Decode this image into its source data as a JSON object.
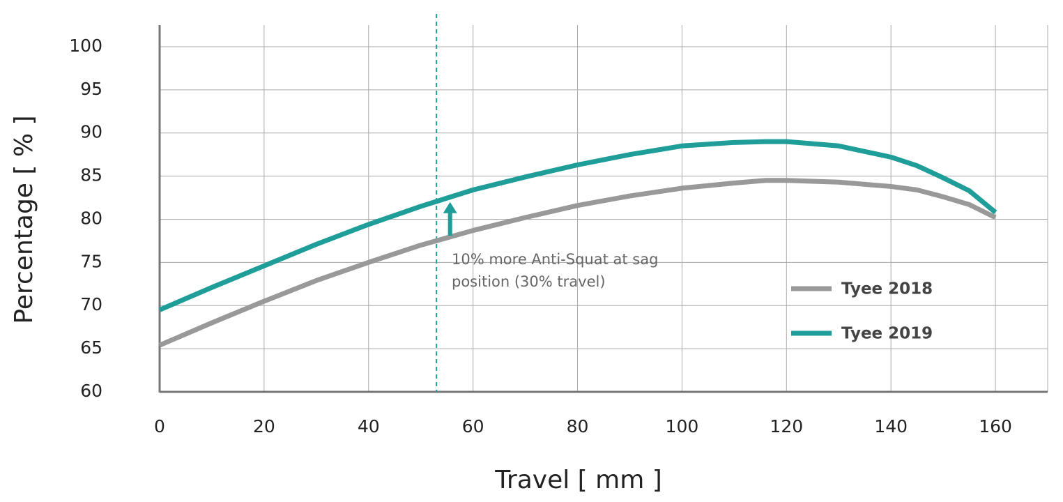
{
  "chart_data": {
    "type": "line",
    "x_label": "Travel [ mm ]",
    "y_label": "Percentage [ % ]",
    "x": [
      0,
      10,
      20,
      30,
      40,
      50,
      60,
      70,
      80,
      90,
      100,
      110,
      116,
      120,
      130,
      140,
      145,
      150,
      155,
      160
    ],
    "series": [
      {
        "name": "Tyee 2018",
        "color": "#999999",
        "values": [
          65.4,
          68.0,
          70.5,
          72.9,
          75.0,
          77.0,
          78.7,
          80.2,
          81.6,
          82.7,
          83.6,
          84.2,
          84.5,
          84.5,
          84.3,
          83.8,
          83.4,
          82.6,
          81.7,
          80.2
        ]
      },
      {
        "name": "Tyee 2019",
        "color": "#1f9e99",
        "values": [
          69.5,
          72.1,
          74.6,
          77.1,
          79.4,
          81.5,
          83.4,
          84.9,
          86.3,
          87.5,
          88.5,
          88.9,
          89.0,
          89.0,
          88.5,
          87.2,
          86.2,
          84.8,
          83.3,
          80.8
        ]
      }
    ],
    "xlim": [
      0,
      170
    ],
    "xticks": [
      0,
      20,
      40,
      60,
      80,
      100,
      120,
      140,
      160
    ],
    "ylim": [
      60,
      102.5
    ],
    "yticks": [
      60,
      65,
      70,
      75,
      80,
      85,
      90,
      95,
      100
    ],
    "grid": true,
    "legend": "lower right",
    "annotation": {
      "text": [
        "10% more Anti-Squat at sag",
        "position (30% travel)"
      ],
      "sag_x": 53,
      "arrow": {
        "x": 55.6,
        "from": 78.1,
        "to": 82.0
      },
      "color": "#1f9e99"
    }
  }
}
